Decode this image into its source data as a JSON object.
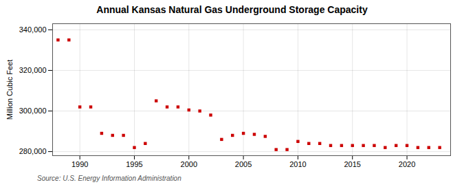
{
  "chart_data": {
    "type": "scatter",
    "title": "Annual Kansas Natural Gas Underground Storage Capacity",
    "ylabel": "Million Cubic Feet",
    "annotations": [
      "Source: U.S. Energy Information Administration"
    ],
    "x": [
      1988,
      1989,
      1990,
      1991,
      1992,
      1993,
      1994,
      1995,
      1996,
      1997,
      1998,
      1999,
      2000,
      2001,
      2002,
      2003,
      2004,
      2005,
      2006,
      2007,
      2008,
      2009,
      2010,
      2011,
      2012,
      2013,
      2014,
      2015,
      2016,
      2017,
      2018,
      2019,
      2020,
      2021,
      2022,
      2023
    ],
    "values": [
      335000,
      335000,
      302000,
      302000,
      289000,
      288000,
      288000,
      282000,
      284000,
      305000,
      302000,
      302000,
      300500,
      300000,
      298000,
      286000,
      288000,
      289000,
      288500,
      287500,
      281000,
      281000,
      285000,
      284000,
      284000,
      283000,
      283000,
      283000,
      283000,
      283000,
      282000,
      283000,
      283000,
      282000,
      282000,
      282000
    ],
    "color": "#cc0000",
    "marker": "square",
    "xlim": [
      1987.5,
      2024
    ],
    "xticks": [
      1990,
      1995,
      2000,
      2005,
      2010,
      2015,
      2020
    ],
    "ylim": [
      278000,
      343000
    ],
    "yticks": [
      {
        "value": 280000,
        "label": "280,000"
      },
      {
        "value": 300000,
        "label": "300,000"
      },
      {
        "value": 320000,
        "label": "320,000"
      },
      {
        "value": 340000,
        "label": "340,000"
      }
    ],
    "grid": true
  }
}
